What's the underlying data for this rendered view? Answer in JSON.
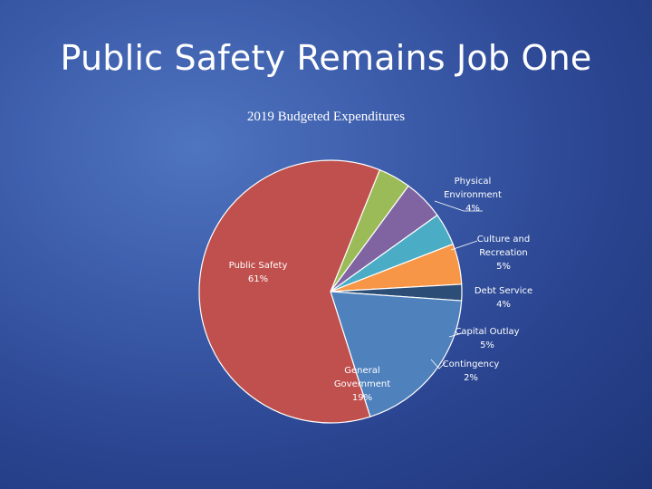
{
  "slide": {
    "title": "Public Safety Remains Job One"
  },
  "chart_data": {
    "type": "pie",
    "title": "2019 Budgeted Expenditures",
    "slices": [
      {
        "label": [
          "Physical",
          "Environment",
          "4%"
        ],
        "value": 4,
        "color": "#9bbb59"
      },
      {
        "label": [
          "Culture and",
          "Recreation",
          "5%"
        ],
        "value": 5,
        "color": "#8064a2"
      },
      {
        "label": [
          "Debt Service",
          "4%"
        ],
        "value": 4,
        "color": "#4bacc6"
      },
      {
        "label": [
          "Capital Outlay",
          "5%"
        ],
        "value": 5,
        "color": "#f79646"
      },
      {
        "label": [
          "Contingency",
          "2%"
        ],
        "value": 2,
        "color": "#2c4d75"
      },
      {
        "label": [
          "General",
          "Government",
          "19%"
        ],
        "value": 19,
        "color": "#4f81bd"
      },
      {
        "label": [
          "Public Safety",
          "61%"
        ],
        "value": 61,
        "color": "#c0504d"
      }
    ],
    "legend": "none"
  }
}
